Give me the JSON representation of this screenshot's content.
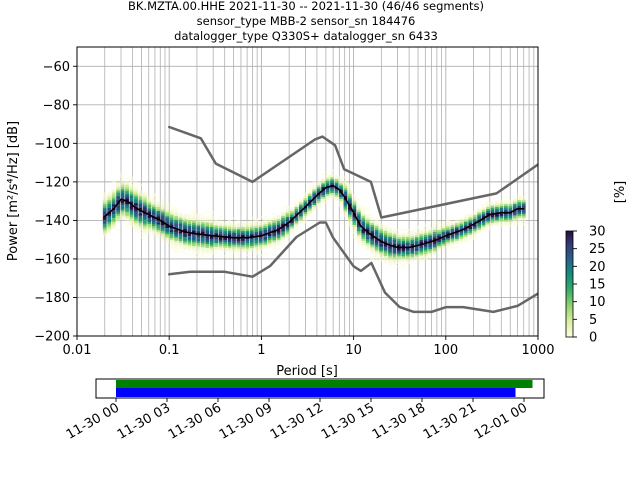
{
  "chart_data": {
    "type": "heatmap",
    "title_lines": [
      "BK.MZTA.00.HHE   2021-11-30 -- 2021-11-30  (46/46 segments)",
      "sensor_type MBB-2 sensor_sn 184476",
      "datalogger_type Q330S+ datalogger_sn 6433"
    ],
    "xlabel": "Period [s]",
    "ylabel": "Power [m²/s⁴/Hz] [dB]",
    "x_scale": "log",
    "xlim": [
      0.01,
      1000
    ],
    "ylim": [
      -200,
      -50
    ],
    "x_ticks": [
      0.01,
      0.1,
      1,
      10,
      100,
      1000
    ],
    "x_tick_labels": [
      "0.01",
      "0.1",
      "1",
      "10",
      "100",
      "1000"
    ],
    "y_ticks": [
      -60,
      -80,
      -100,
      -120,
      -140,
      -160,
      -180,
      -200
    ],
    "y_tick_labels": [
      "−60",
      "−80",
      "−100",
      "−120",
      "−140",
      "−160",
      "−180",
      "−200"
    ],
    "grid": true,
    "colorbar": {
      "label": "[%]",
      "range": [
        0,
        30
      ],
      "ticks": [
        0,
        5,
        10,
        15,
        20,
        25,
        30
      ],
      "tick_labels": [
        "0",
        "5",
        "10",
        "15",
        "20",
        "25",
        "30"
      ]
    },
    "series": [
      {
        "role": "mean",
        "color": "#000000",
        "x": [
          0.02,
          0.025,
          0.03,
          0.035,
          0.045,
          0.06,
          0.08,
          0.1,
          0.15,
          0.2,
          0.3,
          0.5,
          0.7,
          1,
          1.5,
          2,
          3,
          4,
          5,
          6,
          7,
          8,
          10,
          12,
          15,
          20,
          25,
          30,
          40,
          50,
          60,
          80,
          100,
          150,
          200,
          300,
          400,
          500,
          600,
          700
        ],
        "y": [
          -138,
          -134,
          -129,
          -130,
          -134,
          -137,
          -140,
          -143,
          -146,
          -147,
          -148,
          -149,
          -149,
          -148,
          -145,
          -141,
          -133,
          -127,
          -123,
          -122,
          -124,
          -128,
          -136,
          -143,
          -147,
          -151,
          -153,
          -154,
          -154,
          -153,
          -152,
          -150,
          -148,
          -145,
          -142,
          -137,
          -136,
          -136,
          -134,
          -134
        ]
      },
      {
        "role": "high-noise-model",
        "color": "#666666",
        "x": [
          0.1,
          0.22,
          0.32,
          0.8,
          3.8,
          4.6,
          6.3,
          7.9,
          15.4,
          20,
          354.8,
          1000
        ],
        "y": [
          -91.5,
          -97.4,
          -110.5,
          -120,
          -98,
          -96.5,
          -101,
          -113.5,
          -120,
          -138.5,
          -126,
          -111
        ]
      },
      {
        "role": "low-noise-model",
        "color": "#666666",
        "x": [
          0.1,
          0.17,
          0.4,
          0.8,
          1.24,
          2.4,
          4.3,
          5,
          6,
          10,
          12,
          15.6,
          21.9,
          31.6,
          45,
          70,
          101,
          154,
          328,
          600,
          1000
        ],
        "y": [
          -168,
          -166.7,
          -166.7,
          -169.2,
          -163.7,
          -148.6,
          -141.1,
          -141.1,
          -149,
          -163.8,
          -166.2,
          -162.1,
          -177.5,
          -185,
          -187.5,
          -187.5,
          -185,
          -185,
          -187.5,
          -184.4,
          -178
        ]
      }
    ]
  },
  "timeline": {
    "start": "2021-11-30T00:00",
    "end": "2021-12-01T00:00",
    "tick_labels": [
      "11-30 00",
      "11-30 03",
      "11-30 06",
      "11-30 09",
      "11-30 12",
      "11-30 15",
      "11-30 18",
      "11-30 21",
      "12-01 00"
    ],
    "tick_hours": [
      0,
      3,
      6,
      9,
      12,
      15,
      18,
      21,
      24
    ],
    "data_bar": {
      "color": "#008000",
      "start_hour": 0,
      "end_hour": 24.5
    },
    "psd_bar": {
      "color": "#0000ff",
      "start_hour": 0,
      "end_hour": 23.5
    }
  },
  "colors": {
    "grid": "#b0b0b0",
    "noise_model": "#666666",
    "mean": "#000000",
    "data_bar": "#008000",
    "psd_bar": "#0000ff"
  }
}
